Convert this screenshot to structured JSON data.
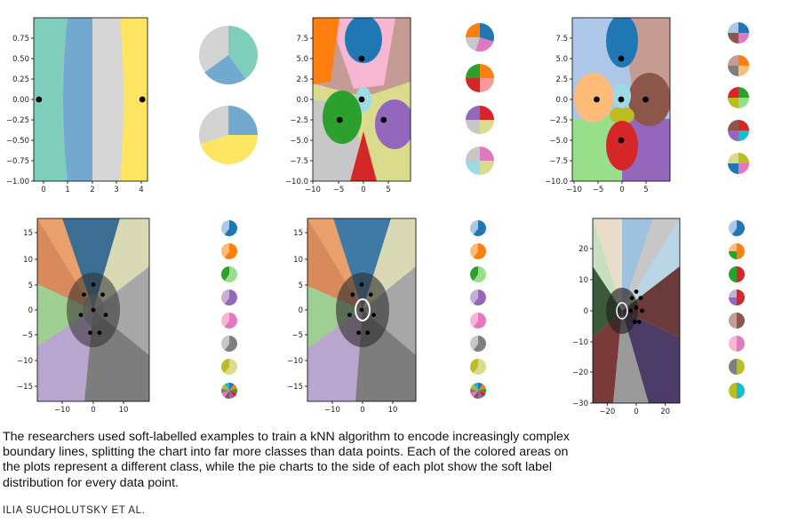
{
  "caption": "The researchers used soft-labelled examples to train a kNN algorithm to encode increasingly complex boundary lines, splitting the chart into far more classes than data points. Each of the colored areas on the plots represent a different class, while the pie charts to the side of each plot show the soft label distribution for every data point.",
  "credit": "ILIA SUCHOLUTSKY ET AL.",
  "colors": {
    "blue": "#1f77b4",
    "orange": "#ff7f0e",
    "green": "#2ca02c",
    "red": "#d62728",
    "purple": "#9467bd",
    "brown": "#8c564b",
    "pink": "#e377c2",
    "gray": "#7f7f7f",
    "olive": "#bcbd22",
    "cyan": "#17becf",
    "lightblue": "#aec7e8",
    "lightorange": "#ffbb78",
    "lightgreen": "#98df8a",
    "lightred": "#ff9896",
    "lightpurple": "#c5b0d5",
    "lightbrown": "#c49c94",
    "lightpink": "#f7b6d2",
    "lightgray": "#c7c7c7",
    "lightolive": "#dbdb8d",
    "lightcyan": "#9edae5",
    "teal": "#7fcdbb",
    "steel": "#74a9cf",
    "silver": "#d3d3d3",
    "yellow": "#fde561"
  },
  "chart_data": [
    {
      "type": "scatter",
      "xlim": [
        -0.2,
        4.2
      ],
      "ylim": [
        -1.0,
        1.0
      ],
      "xticks": [
        "0",
        "1",
        "2",
        "3",
        "4"
      ],
      "yticks": [
        "0.75",
        "0.50",
        "0.25",
        "0.00",
        "−0.25",
        "−0.50",
        "−0.75",
        "−1.00"
      ],
      "points": [
        [
          0,
          0
        ],
        [
          4,
          0
        ]
      ],
      "pies": [
        {
          "values": [
            40,
            25,
            15,
            20
          ],
          "colors": [
            "teal",
            "steel",
            "silver",
            "silver"
          ]
        },
        {
          "values": [
            25,
            45,
            30
          ],
          "colors": [
            "steel",
            "yellow",
            "silver"
          ]
        }
      ]
    },
    {
      "type": "scatter",
      "xlim": [
        -10,
        10
      ],
      "ylim": [
        -10,
        10
      ],
      "xticks": [
        "−10",
        "−5",
        "0",
        "5"
      ],
      "yticks": [
        "7.5",
        "5.0",
        "2.5",
        "0.0",
        "−2.5",
        "−5.0",
        "−7.5",
        "−10.0"
      ],
      "points": [
        [
          0,
          5
        ],
        [
          0,
          0
        ],
        [
          -4.5,
          -2.5
        ],
        [
          4.5,
          -2.5
        ]
      ],
      "pies": [
        {
          "values": [
            30,
            25,
            20,
            25
          ],
          "colors": [
            "blue",
            "pink",
            "lightgray",
            "orange"
          ]
        },
        {
          "values": [
            25,
            25,
            25,
            25
          ],
          "colors": [
            "orange",
            "lightred",
            "red",
            "green"
          ]
        },
        {
          "values": [
            25,
            25,
            25,
            25
          ],
          "colors": [
            "red",
            "lightolive",
            "lightgray",
            "purple"
          ]
        },
        {
          "values": [
            25,
            25,
            25,
            25
          ],
          "colors": [
            "pink",
            "lightolive",
            "lightcyan",
            "lightgray"
          ]
        }
      ]
    },
    {
      "type": "scatter",
      "xlim": [
        -10,
        10
      ],
      "ylim": [
        -10,
        10
      ],
      "xticks": [
        "−10",
        "−5",
        "0",
        "5"
      ],
      "yticks": [
        "7.5",
        "5.0",
        "2.5",
        "0.0",
        "−2.5",
        "−5.0",
        "−7.5",
        "−10.0"
      ],
      "points": [
        [
          0,
          5
        ],
        [
          -5,
          0
        ],
        [
          0,
          0
        ],
        [
          5,
          0
        ],
        [
          0,
          -5
        ]
      ],
      "pies": [
        {
          "values": [
            25,
            25,
            25,
            25
          ],
          "colors": [
            "blue",
            "pink",
            "brown",
            "lightblue"
          ]
        },
        {
          "values": [
            25,
            25,
            25,
            25
          ],
          "colors": [
            "orange",
            "lightorange",
            "gray",
            "lightbrown"
          ]
        },
        {
          "values": [
            25,
            25,
            25,
            25
          ],
          "colors": [
            "green",
            "lightgreen",
            "olive",
            "red"
          ]
        },
        {
          "values": [
            25,
            25,
            25,
            25
          ],
          "colors": [
            "red",
            "cyan",
            "purple",
            "brown"
          ]
        },
        {
          "values": [
            25,
            25,
            25,
            25
          ],
          "colors": [
            "olive",
            "pink",
            "blue",
            "lightolive"
          ]
        }
      ]
    },
    {
      "type": "scatter",
      "xlim": [
        -18,
        18
      ],
      "ylim": [
        -18,
        18
      ],
      "xticks": [
        "−10",
        "0",
        "10"
      ],
      "yticks": [
        "15",
        "10",
        "5",
        "0",
        "−5",
        "−10",
        "−15"
      ],
      "points": [
        [
          0,
          5
        ],
        [
          -3,
          3
        ],
        [
          3,
          3
        ],
        [
          -4,
          -1
        ],
        [
          0,
          0
        ],
        [
          4,
          -1
        ],
        [
          -1,
          -4.5
        ],
        [
          2,
          -4.5
        ]
      ],
      "pies": [
        {
          "values": [
            60,
            40
          ],
          "colors": [
            "blue",
            "lightblue"
          ]
        },
        {
          "values": [
            60,
            40
          ],
          "colors": [
            "orange",
            "lightorange"
          ]
        },
        {
          "values": [
            60,
            40
          ],
          "colors": [
            "lightgreen",
            "green"
          ]
        },
        {
          "values": [
            60,
            40
          ],
          "colors": [
            "purple",
            "lightpurple"
          ]
        },
        {
          "values": [
            60,
            40
          ],
          "colors": [
            "pink",
            "lightpink"
          ]
        },
        {
          "values": [
            60,
            40
          ],
          "colors": [
            "gray",
            "lightgray"
          ]
        },
        {
          "values": [
            60,
            40
          ],
          "colors": [
            "lightolive",
            "olive"
          ]
        },
        {
          "values": [
            10,
            10,
            10,
            10,
            10,
            10,
            10,
            10,
            10,
            10
          ],
          "colors": [
            "blue",
            "orange",
            "green",
            "red",
            "purple",
            "brown",
            "pink",
            "gray",
            "olive",
            "cyan"
          ]
        }
      ]
    },
    {
      "type": "scatter",
      "xlim": [
        -18,
        18
      ],
      "ylim": [
        -18,
        18
      ],
      "xticks": [
        "−10",
        "0",
        "10"
      ],
      "yticks": [
        "15",
        "10",
        "5",
        "0",
        "−5",
        "−10",
        "−15"
      ],
      "points": [
        [
          0,
          5
        ],
        [
          -3,
          3
        ],
        [
          3,
          3
        ],
        [
          -4,
          -1
        ],
        [
          0,
          0
        ],
        [
          4,
          -1
        ],
        [
          -1,
          -4.5
        ],
        [
          2,
          -4.5
        ]
      ],
      "pies": [
        {
          "values": [
            60,
            40
          ],
          "colors": [
            "blue",
            "lightblue"
          ]
        },
        {
          "values": [
            60,
            40
          ],
          "colors": [
            "orange",
            "lightorange"
          ]
        },
        {
          "values": [
            60,
            40
          ],
          "colors": [
            "lightgreen",
            "green"
          ]
        },
        {
          "values": [
            60,
            40
          ],
          "colors": [
            "purple",
            "lightpurple"
          ]
        },
        {
          "values": [
            60,
            40
          ],
          "colors": [
            "pink",
            "lightpink"
          ]
        },
        {
          "values": [
            60,
            40
          ],
          "colors": [
            "gray",
            "lightgray"
          ]
        },
        {
          "values": [
            60,
            40
          ],
          "colors": [
            "lightolive",
            "olive"
          ]
        },
        {
          "values": [
            10,
            10,
            10,
            10,
            10,
            10,
            10,
            10,
            10,
            10
          ],
          "colors": [
            "blue",
            "orange",
            "green",
            "red",
            "purple",
            "brown",
            "pink",
            "gray",
            "olive",
            "cyan"
          ]
        }
      ]
    },
    {
      "type": "scatter",
      "xlim": [
        -30,
        30
      ],
      "ylim": [
        -30,
        28
      ],
      "xticks": [
        "−20",
        "0",
        "20"
      ],
      "yticks": [
        "20",
        "10",
        "0",
        "−10",
        "−20",
        "−30"
      ],
      "points": [
        [
          0,
          5
        ],
        [
          -3,
          3
        ],
        [
          3,
          3
        ],
        [
          -4,
          -1
        ],
        [
          0,
          0
        ],
        [
          4,
          -1
        ],
        [
          -1,
          -4.5
        ],
        [
          2,
          -4.5
        ]
      ],
      "pies": [
        {
          "values": [
            60,
            40
          ],
          "colors": [
            "blue",
            "lightblue"
          ]
        },
        {
          "values": [
            50,
            25,
            25
          ],
          "colors": [
            "orange",
            "green",
            "lightorange"
          ]
        },
        {
          "values": [
            50,
            50
          ],
          "colors": [
            "red",
            "green"
          ]
        },
        {
          "values": [
            50,
            25,
            25
          ],
          "colors": [
            "red",
            "purple",
            "lightpurple"
          ]
        },
        {
          "values": [
            50,
            50
          ],
          "colors": [
            "brown",
            "lightbrown"
          ]
        },
        {
          "values": [
            50,
            50
          ],
          "colors": [
            "pink",
            "lightpink"
          ]
        },
        {
          "values": [
            50,
            50
          ],
          "colors": [
            "olive",
            "gray"
          ]
        },
        {
          "values": [
            50,
            50
          ],
          "colors": [
            "cyan",
            "olive"
          ]
        }
      ]
    }
  ]
}
